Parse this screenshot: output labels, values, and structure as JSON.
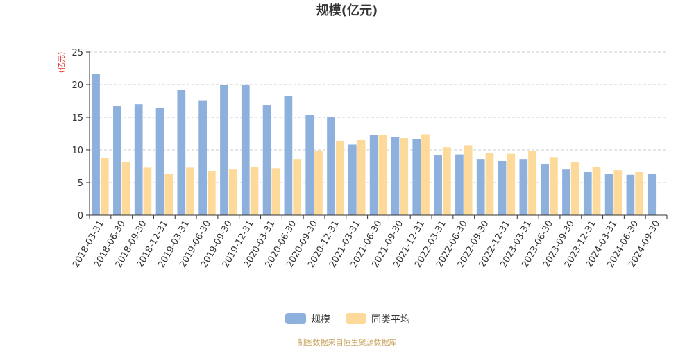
{
  "chart_data": {
    "type": "bar",
    "title": "规模(亿元)",
    "ylabel": "(亿元)",
    "xlabel": "",
    "ylim": [
      0,
      25
    ],
    "yticks": [
      0,
      5,
      10,
      15,
      20,
      25
    ],
    "grid": true,
    "legend_position": "bottom",
    "categories": [
      "2018-03-31",
      "2018-06-30",
      "2018-09-30",
      "2018-12-31",
      "2019-03-31",
      "2019-06-30",
      "2019-09-30",
      "2019-12-31",
      "2020-03-31",
      "2020-06-30",
      "2020-09-30",
      "2020-12-31",
      "2021-03-31",
      "2021-06-30",
      "2021-09-30",
      "2021-12-31",
      "2022-03-31",
      "2022-06-30",
      "2022-09-30",
      "2022-12-31",
      "2023-03-31",
      "2023-06-30",
      "2023-09-30",
      "2023-12-31",
      "2024-03-31",
      "2024-06-30",
      "2024-09-30"
    ],
    "series": [
      {
        "name": "规模",
        "color": "#8eb0dd",
        "values": [
          21.7,
          16.7,
          17.0,
          16.4,
          19.2,
          17.6,
          20.0,
          19.9,
          16.8,
          18.3,
          15.4,
          15.0,
          10.8,
          12.3,
          12.0,
          11.7,
          9.2,
          9.3,
          8.6,
          8.3,
          8.6,
          7.8,
          7.0,
          6.6,
          6.3,
          6.2,
          6.3
        ]
      },
      {
        "name": "同类平均",
        "color": "#fdd99a",
        "values": [
          8.8,
          8.1,
          7.3,
          6.3,
          7.3,
          6.8,
          7.0,
          7.4,
          7.2,
          8.6,
          9.9,
          11.4,
          11.5,
          12.3,
          11.8,
          12.4,
          10.4,
          10.7,
          9.5,
          9.4,
          9.8,
          8.9,
          8.1,
          7.4,
          6.9,
          6.6,
          null
        ]
      }
    ]
  },
  "footer": {
    "source_text": "制图数据来自恒生聚源数据库"
  },
  "colors": {
    "source_text": "#c8a560",
    "ylabel": "#e83030"
  }
}
